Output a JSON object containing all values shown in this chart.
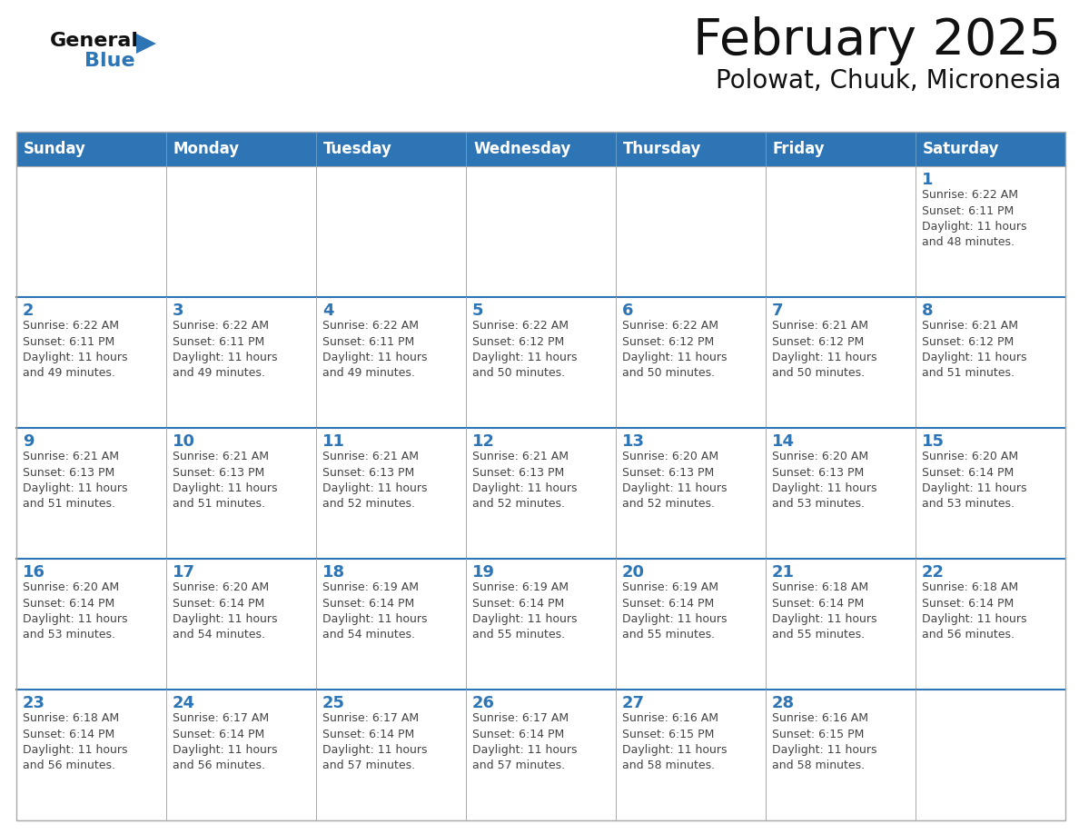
{
  "title": "February 2025",
  "subtitle": "Polowat, Chuuk, Micronesia",
  "header_bg": "#2E75B6",
  "header_text_color": "#FFFFFF",
  "header_days": [
    "Sunday",
    "Monday",
    "Tuesday",
    "Wednesday",
    "Thursday",
    "Friday",
    "Saturday"
  ],
  "cell_bg": "#FFFFFF",
  "row_border_color": "#2E75B6",
  "col_border_color": "#AAAAAA",
  "outer_border_color": "#AAAAAA",
  "day_num_color": "#2E75B6",
  "info_color": "#444444",
  "title_color": "#111111",
  "subtitle_color": "#111111",
  "logo_general_color": "#111111",
  "logo_blue_color": "#2E75B6",
  "weeks": [
    [
      {
        "day": null,
        "info": ""
      },
      {
        "day": null,
        "info": ""
      },
      {
        "day": null,
        "info": ""
      },
      {
        "day": null,
        "info": ""
      },
      {
        "day": null,
        "info": ""
      },
      {
        "day": null,
        "info": ""
      },
      {
        "day": 1,
        "info": "Sunrise: 6:22 AM\nSunset: 6:11 PM\nDaylight: 11 hours\nand 48 minutes."
      }
    ],
    [
      {
        "day": 2,
        "info": "Sunrise: 6:22 AM\nSunset: 6:11 PM\nDaylight: 11 hours\nand 49 minutes."
      },
      {
        "day": 3,
        "info": "Sunrise: 6:22 AM\nSunset: 6:11 PM\nDaylight: 11 hours\nand 49 minutes."
      },
      {
        "day": 4,
        "info": "Sunrise: 6:22 AM\nSunset: 6:11 PM\nDaylight: 11 hours\nand 49 minutes."
      },
      {
        "day": 5,
        "info": "Sunrise: 6:22 AM\nSunset: 6:12 PM\nDaylight: 11 hours\nand 50 minutes."
      },
      {
        "day": 6,
        "info": "Sunrise: 6:22 AM\nSunset: 6:12 PM\nDaylight: 11 hours\nand 50 minutes."
      },
      {
        "day": 7,
        "info": "Sunrise: 6:21 AM\nSunset: 6:12 PM\nDaylight: 11 hours\nand 50 minutes."
      },
      {
        "day": 8,
        "info": "Sunrise: 6:21 AM\nSunset: 6:12 PM\nDaylight: 11 hours\nand 51 minutes."
      }
    ],
    [
      {
        "day": 9,
        "info": "Sunrise: 6:21 AM\nSunset: 6:13 PM\nDaylight: 11 hours\nand 51 minutes."
      },
      {
        "day": 10,
        "info": "Sunrise: 6:21 AM\nSunset: 6:13 PM\nDaylight: 11 hours\nand 51 minutes."
      },
      {
        "day": 11,
        "info": "Sunrise: 6:21 AM\nSunset: 6:13 PM\nDaylight: 11 hours\nand 52 minutes."
      },
      {
        "day": 12,
        "info": "Sunrise: 6:21 AM\nSunset: 6:13 PM\nDaylight: 11 hours\nand 52 minutes."
      },
      {
        "day": 13,
        "info": "Sunrise: 6:20 AM\nSunset: 6:13 PM\nDaylight: 11 hours\nand 52 minutes."
      },
      {
        "day": 14,
        "info": "Sunrise: 6:20 AM\nSunset: 6:13 PM\nDaylight: 11 hours\nand 53 minutes."
      },
      {
        "day": 15,
        "info": "Sunrise: 6:20 AM\nSunset: 6:14 PM\nDaylight: 11 hours\nand 53 minutes."
      }
    ],
    [
      {
        "day": 16,
        "info": "Sunrise: 6:20 AM\nSunset: 6:14 PM\nDaylight: 11 hours\nand 53 minutes."
      },
      {
        "day": 17,
        "info": "Sunrise: 6:20 AM\nSunset: 6:14 PM\nDaylight: 11 hours\nand 54 minutes."
      },
      {
        "day": 18,
        "info": "Sunrise: 6:19 AM\nSunset: 6:14 PM\nDaylight: 11 hours\nand 54 minutes."
      },
      {
        "day": 19,
        "info": "Sunrise: 6:19 AM\nSunset: 6:14 PM\nDaylight: 11 hours\nand 55 minutes."
      },
      {
        "day": 20,
        "info": "Sunrise: 6:19 AM\nSunset: 6:14 PM\nDaylight: 11 hours\nand 55 minutes."
      },
      {
        "day": 21,
        "info": "Sunrise: 6:18 AM\nSunset: 6:14 PM\nDaylight: 11 hours\nand 55 minutes."
      },
      {
        "day": 22,
        "info": "Sunrise: 6:18 AM\nSunset: 6:14 PM\nDaylight: 11 hours\nand 56 minutes."
      }
    ],
    [
      {
        "day": 23,
        "info": "Sunrise: 6:18 AM\nSunset: 6:14 PM\nDaylight: 11 hours\nand 56 minutes."
      },
      {
        "day": 24,
        "info": "Sunrise: 6:17 AM\nSunset: 6:14 PM\nDaylight: 11 hours\nand 56 minutes."
      },
      {
        "day": 25,
        "info": "Sunrise: 6:17 AM\nSunset: 6:14 PM\nDaylight: 11 hours\nand 57 minutes."
      },
      {
        "day": 26,
        "info": "Sunrise: 6:17 AM\nSunset: 6:14 PM\nDaylight: 11 hours\nand 57 minutes."
      },
      {
        "day": 27,
        "info": "Sunrise: 6:16 AM\nSunset: 6:15 PM\nDaylight: 11 hours\nand 58 minutes."
      },
      {
        "day": 28,
        "info": "Sunrise: 6:16 AM\nSunset: 6:15 PM\nDaylight: 11 hours\nand 58 minutes."
      },
      {
        "day": null,
        "info": ""
      }
    ]
  ]
}
